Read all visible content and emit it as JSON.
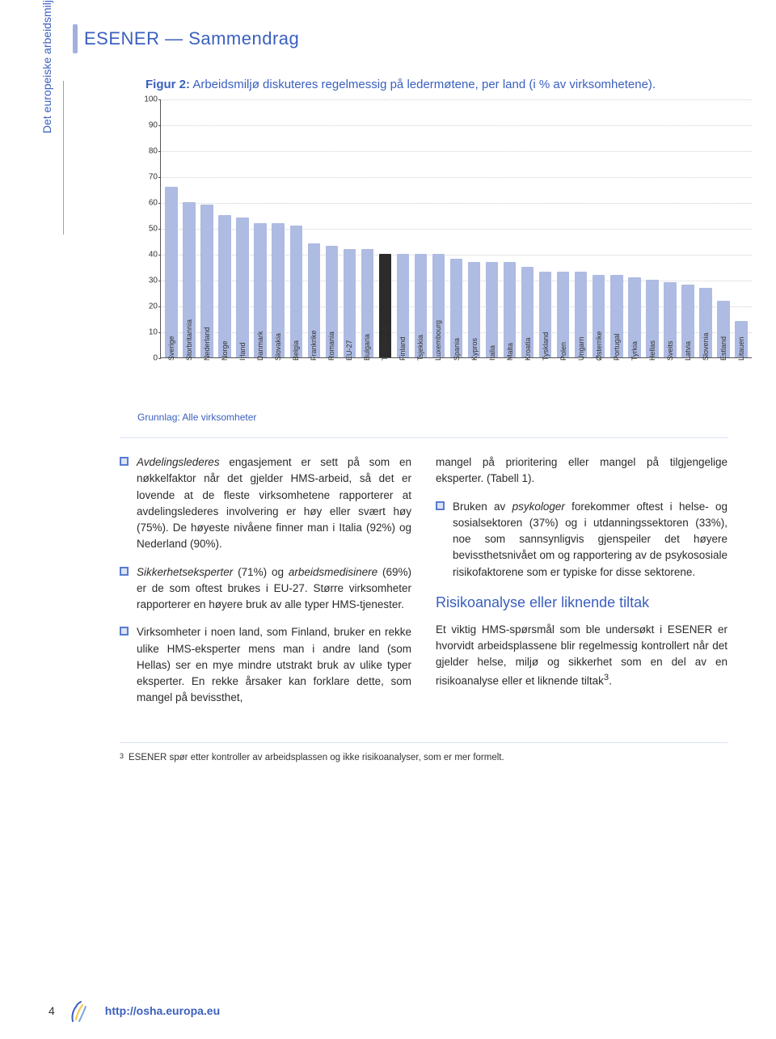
{
  "header_title": "ESENER — Sammendrag",
  "side_label": "Det europeiske arbeidsmiljøorganet",
  "figure": {
    "label": "Figur 2:",
    "desc": "Arbeidsmiljø diskuteres regelmessig på ledermøtene, per land (i % av virksomhetene).",
    "footnote": "Grunnlag: Alle virksomheter"
  },
  "chart": {
    "type": "bar",
    "ylim": [
      0,
      100
    ],
    "ytick_step": 10,
    "categories": [
      "Sverige",
      "Storbritannia",
      "Nederland",
      "Norge",
      "Irland",
      "Danmark",
      "Slovakia",
      "Belgia",
      "Frankrike",
      "Romania",
      "EU-27",
      "Bulgaria",
      "TOTALT 31",
      "Finland",
      "Tsjekkia",
      "Luxembourg",
      "Spania",
      "Kypros",
      "Italia",
      "Malta",
      "Kroatia",
      "Tyskland",
      "Polen",
      "Ungarn",
      "Østerrike",
      "Portugal",
      "Tyrkia",
      "Hellas",
      "Sveits",
      "Latvia",
      "Slovenia",
      "Estland",
      "Litauen"
    ],
    "values": [
      66,
      60,
      59,
      55,
      54,
      52,
      52,
      51,
      44,
      43,
      42,
      42,
      40,
      40,
      40,
      40,
      38,
      37,
      37,
      37,
      35,
      33,
      33,
      33,
      32,
      32,
      31,
      30,
      29,
      28,
      27,
      22,
      14
    ],
    "bar_color": "#aebbe2",
    "highlight_index": 12,
    "highlight_color": "#2b2b2b",
    "grid_color": "#cfcfcf",
    "axis_color": "#555555",
    "background_color": "#ffffff",
    "label_fontsize": 9,
    "tick_fontsize": 10
  },
  "body": {
    "left": [
      {
        "type": "bullet",
        "html": "<em>Avdelingslederes</em> engasjement er sett på som en nøkkelfaktor når det gjelder HMS-arbeid, så det er lovende at de fleste virksomhetene rapporterer at avdelingslederes involvering er høy eller svært høy (75%). De høyeste nivåene finner man i Italia (92%) og Nederland (90%)."
      },
      {
        "type": "bullet",
        "html": "<em>Sikkerhetseksperter</em> (71%) og <em>arbeidsmedisinere</em> (69%) er de som oftest brukes i EU-27. Større virksomheter rapporterer en høyere bruk av alle typer HMS-tjenester."
      },
      {
        "type": "bullet",
        "html": "Virksomheter i noen land, som Finland, bruker en rekke ulike HMS-eksperter mens man i andre land (som Hellas) ser en mye mindre utstrakt bruk av ulike typer eksperter. En rekke årsaker kan forklare dette, som mangel på bevissthet,"
      }
    ],
    "right": [
      {
        "type": "cont",
        "html": "mangel på prioritering eller mangel på tilgjengelige eksperter. (Tabell 1)."
      },
      {
        "type": "bullet",
        "html": "Bruken av <em>psykologer</em> forekommer oftest i helse- og sosialsektoren (37%) og i utdanningssektoren (33%), noe som sannsynligvis gjenspeiler det høyere bevissthetsnivået om og rapportering av de psykososiale risikofaktorene som er typiske for disse sektorene."
      },
      {
        "type": "heading",
        "html": "Risikoanalyse eller liknende tiltak"
      },
      {
        "type": "cont",
        "html": "Et viktig HMS-spørsmål som ble undersøkt i ESENER er hvorvidt arbeidsplassene blir regelmessig kontrollert når det gjelder helse, miljø og sikkerhet som en del av en risikoanalyse eller et liknende tiltak<sup>3</sup>."
      }
    ]
  },
  "footnote3": "ESENER spør etter kontroller av arbeidsplassen og ikke risikoanalyser, som er mer formelt.",
  "footer": {
    "page": "4",
    "url": "http://osha.europa.eu"
  },
  "colors": {
    "brand": "#3a5fbf",
    "brand_light": "#a3b0db",
    "text": "#2b2b2b"
  }
}
